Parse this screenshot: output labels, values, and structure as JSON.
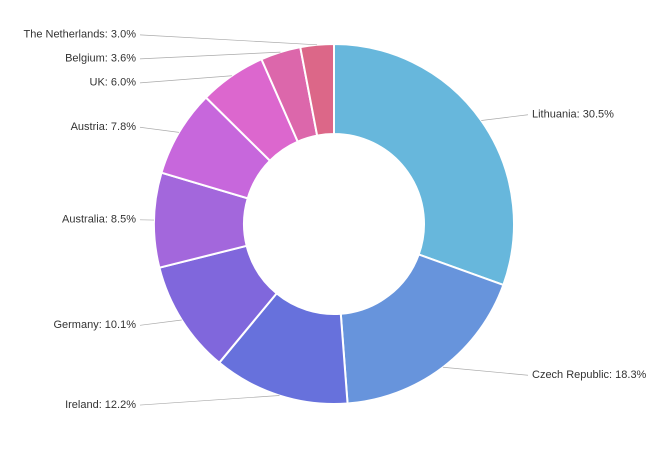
{
  "chart_data": {
    "type": "donut",
    "values": [
      30.5,
      18.3,
      12.2,
      10.1,
      8.5,
      7.8,
      6.0,
      3.6,
      3.0
    ],
    "value_labels": [
      "Lithuania: 30.5%",
      "Czech Republic: 18.3%",
      "Ireland: 12.2%",
      "Germany: 10.1%",
      "Australia: 8.5%",
      "Austria: 7.8%",
      "UK: 6.0%",
      "Belgium: 3.6%",
      "The Netherlands: 3.0%"
    ],
    "colors": [
      "#67b7dc",
      "#6794dc",
      "#6771dc",
      "#8067dc",
      "#a367dc",
      "#c767dc",
      "#dc67ce",
      "#dc67ab",
      "#dc6788"
    ]
  }
}
